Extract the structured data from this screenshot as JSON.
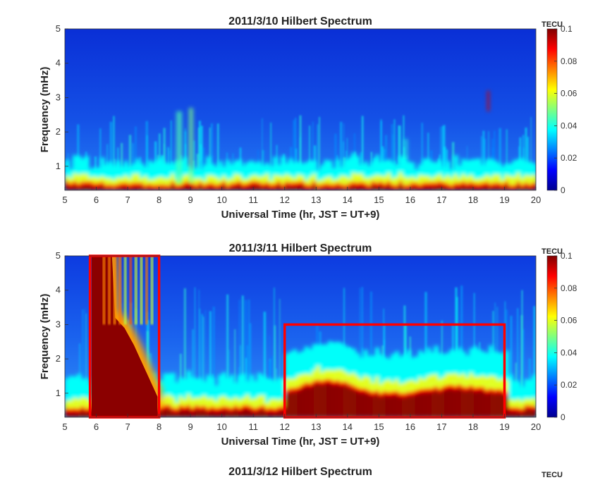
{
  "chart_data": [
    {
      "type": "heatmap",
      "title": "2011/3/10 Hilbert Spectrum",
      "xlabel": "Universal Time (hr, JST = UT+9)",
      "ylabel": "Frequency (mHz)",
      "xlim": [
        5,
        20
      ],
      "ylim": [
        0.3,
        5
      ],
      "x_ticks": [
        "5",
        "6",
        "7",
        "8",
        "9",
        "10",
        "11",
        "12",
        "13",
        "14",
        "15",
        "16",
        "17",
        "18",
        "19",
        "20"
      ],
      "y_ticks": [
        "1",
        "2",
        "3",
        "4",
        "5"
      ],
      "colorbar": {
        "label": "TECU",
        "range": [
          0,
          0.1
        ],
        "ticks": [
          "0",
          "0.02",
          "0.04",
          "0.06",
          "0.08",
          "0.1"
        ]
      },
      "features": [
        {
          "kind": "low-frequency band",
          "x": [
            5,
            20
          ],
          "y": [
            0.3,
            0.5
          ],
          "value": 0.1
        },
        {
          "kind": "weak bursts",
          "x": [
            8.5,
            9.2
          ],
          "y": [
            0.5,
            2.7
          ],
          "value": 0.05
        }
      ],
      "highlight_boxes": []
    },
    {
      "type": "heatmap",
      "title": "2011/3/11 Hilbert Spectrum",
      "xlabel": "Universal Time (hr, JST = UT+9)",
      "ylabel": "Frequency (mHz)",
      "xlim": [
        5,
        20
      ],
      "ylim": [
        0.3,
        5
      ],
      "x_ticks": [
        "5",
        "6",
        "7",
        "8",
        "9",
        "10",
        "11",
        "12",
        "13",
        "14",
        "15",
        "16",
        "17",
        "18",
        "19",
        "20"
      ],
      "y_ticks": [
        "1",
        "2",
        "3",
        "4",
        "5"
      ],
      "colorbar": {
        "label": "TECU",
        "range": [
          0,
          0.1
        ],
        "ticks": [
          "0",
          "0.02",
          "0.04",
          "0.06",
          "0.08",
          "0.1"
        ]
      },
      "features": [
        {
          "kind": "saturated broadband",
          "x": [
            5.8,
            8.0
          ],
          "y": [
            0.3,
            5
          ],
          "value": 0.1
        },
        {
          "kind": "enhanced band",
          "x": [
            12,
            19
          ],
          "y": [
            0.3,
            1.8
          ],
          "value": 0.1
        }
      ],
      "highlight_boxes": [
        {
          "x": [
            5.8,
            8.0
          ],
          "y": [
            0.3,
            5
          ],
          "color": "#ff0000"
        },
        {
          "x": [
            12,
            19
          ],
          "y": [
            0.3,
            3
          ],
          "color": "#ff0000"
        }
      ]
    },
    {
      "type": "heatmap",
      "title": "2011/3/12 Hilbert Spectrum",
      "colorbar": {
        "label": "TECU"
      }
    }
  ]
}
